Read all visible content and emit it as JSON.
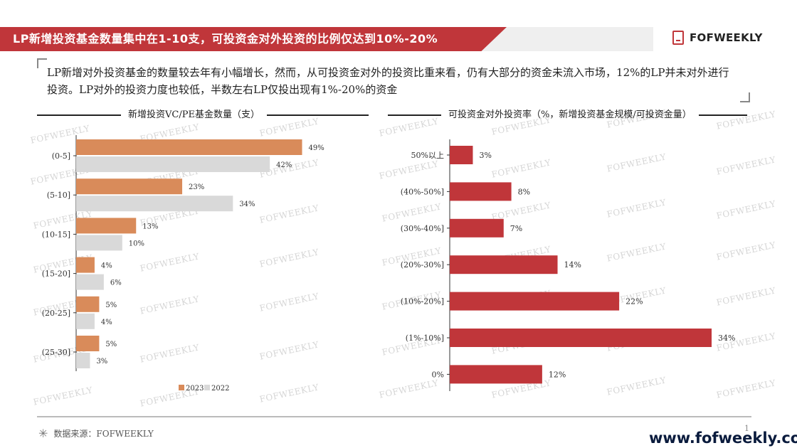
{
  "header": {
    "title": "LP新增投资基金数量集中在1-10支，可投资金对外投资的比例仅达到10%-20%",
    "logo_text": "FOFWEEKLY"
  },
  "summary": "LP新增对外投资基金的数量较去年有小幅增长，然而，从可投资金对外的投资比重来看，仍有大部分的资金未流入市场，12%的LP并未对外进行投资。LP对外的投资力度也较低，半数左右LP仅投出现有1%-20%的资金",
  "watermark": "FOFWEEKLY",
  "colors": {
    "brand_red": "#c0363a",
    "series_2023": "#d98b5a",
    "series_2022": "#d9d9d9",
    "bar_red": "#c0363a"
  },
  "chart_data": [
    {
      "type": "bar",
      "orientation": "horizontal",
      "title": "新增投资VC/PE基金数量（支）",
      "categories": [
        "(0-5]",
        "(5-10]",
        "(10-15]",
        "(15-20]",
        "(20-25]",
        "(25-30]"
      ],
      "series": [
        {
          "name": "2023",
          "values": [
            49,
            23,
            13,
            4,
            5,
            5
          ]
        },
        {
          "name": "2022",
          "values": [
            42,
            34,
            10,
            6,
            4,
            3
          ]
        }
      ],
      "value_suffix": "%",
      "xlim": [
        0,
        50
      ],
      "legend": "bottom"
    },
    {
      "type": "bar",
      "orientation": "horizontal",
      "title": "可投资金对外投资率（%，新增投资基金规模/可投资金量）",
      "categories": [
        "50%以上",
        "(40%-50%]",
        "(30%-40%]",
        "(20%-30%]",
        "(10%-20%]",
        "(1%-10%]",
        "0%"
      ],
      "values": [
        3,
        8,
        7,
        14,
        22,
        34,
        12
      ],
      "value_suffix": "%",
      "xlim": [
        0,
        34
      ]
    }
  ],
  "footer": {
    "source": "数据来源：FOFWEEKLY",
    "page": "1",
    "url": "www.fofweekly.com"
  }
}
